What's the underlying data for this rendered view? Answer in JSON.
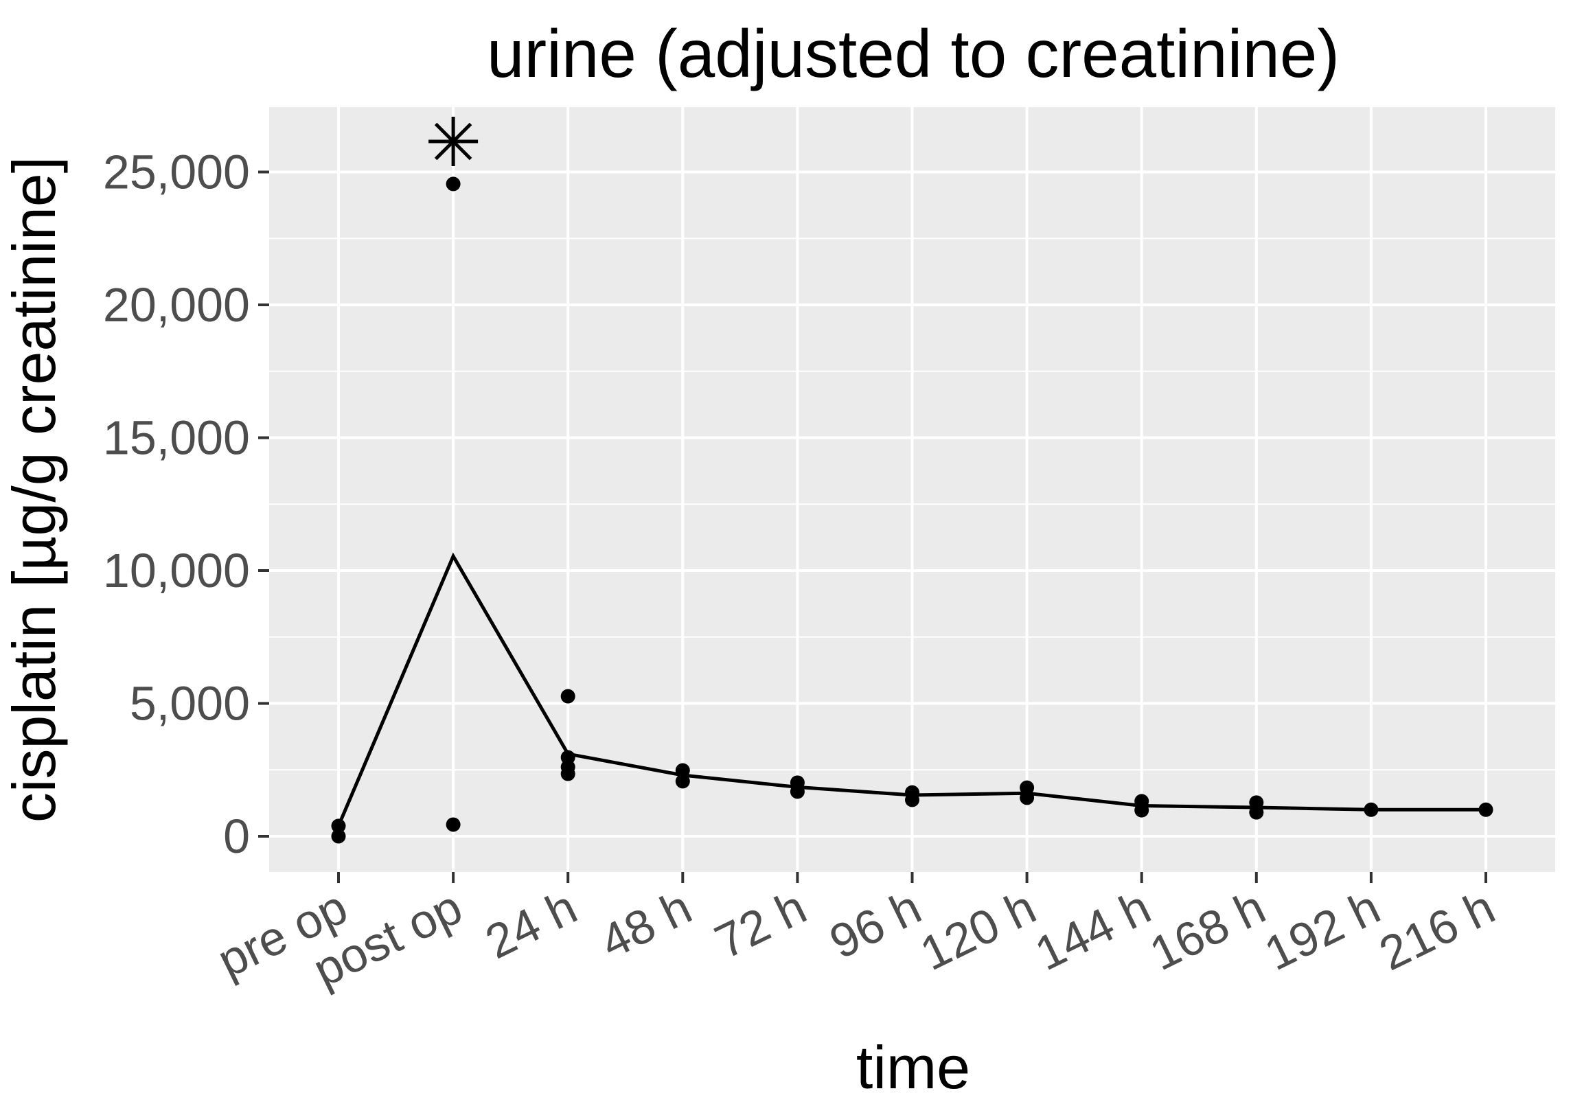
{
  "chart_data": {
    "type": "scatter",
    "title": "urine (adjusted to creatinine)",
    "xlabel": "time",
    "ylabel": "cisplatin [µg/g creatinine]",
    "categories": [
      "pre op",
      "post op",
      "24 h",
      "48 h",
      "72 h",
      "96 h",
      "120 h",
      "144 h",
      "168 h",
      "192 h",
      "216 h"
    ],
    "y_ticks": [
      0,
      5000,
      10000,
      15000,
      20000,
      25000
    ],
    "y_tick_labels": [
      "0",
      "5,000",
      "10,000",
      "15,000",
      "20,000",
      "25,000"
    ],
    "ylim": [
      -1340,
      27440
    ],
    "grid": {
      "horizontal_major": true,
      "horizontal_minor": true,
      "vertical_major": true,
      "vertical_minor": false
    },
    "legend_position": "none",
    "series": [
      {
        "name": "individual measurements",
        "type": "points",
        "values_by_category": [
          [
            0,
            390
          ],
          [
            440,
            24550
          ],
          [
            2350,
            2610,
            2970,
            5270
          ],
          [
            2070,
            2480
          ],
          [
            1680,
            2020
          ],
          [
            1370,
            1650
          ],
          [
            1450,
            1830
          ],
          [
            980,
            1320
          ],
          [
            900,
            1270
          ],
          [
            1000
          ],
          [
            1000
          ]
        ]
      },
      {
        "name": "summary line",
        "type": "line",
        "values": [
          390,
          10540,
          3100,
          2300,
          1850,
          1550,
          1620,
          1150,
          1085,
          1000,
          1000
        ]
      }
    ],
    "annotations": [
      {
        "symbol": "*",
        "shape": "eight-ray-asterisk",
        "category": "post op",
        "y": 26150,
        "meaning": "significance marker"
      }
    ],
    "colors": {
      "panel_background": "#EBEBEB",
      "gridline": "#FFFFFF",
      "point": "#000000",
      "line": "#000000",
      "tick_mark": "#333333",
      "tick_label": "#4D4D4D",
      "title_text": "#000000"
    }
  }
}
